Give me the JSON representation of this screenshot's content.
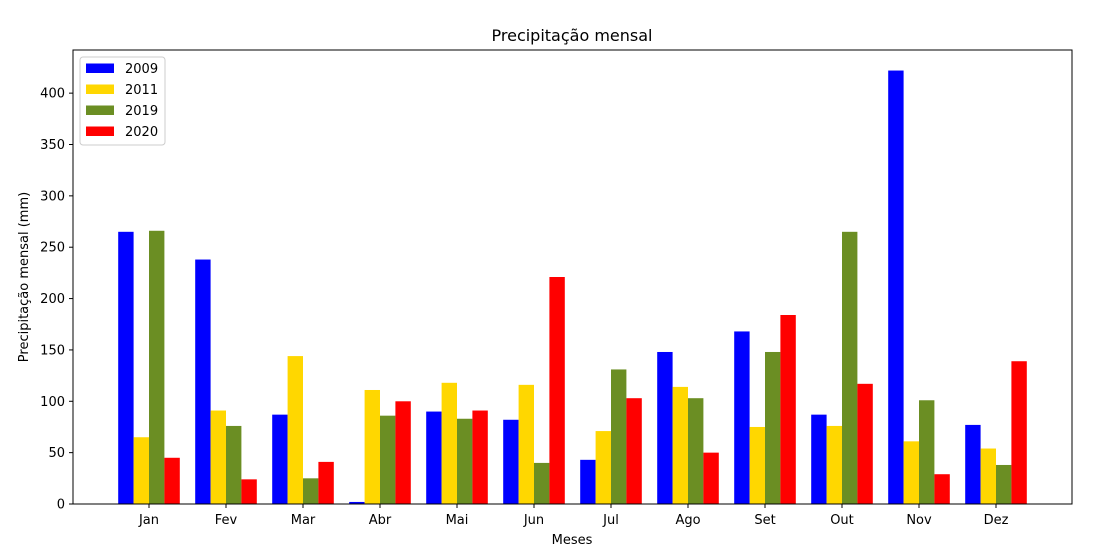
{
  "chart_data": {
    "type": "bar",
    "title": "Precipitação mensal",
    "xlabel": "Meses",
    "ylabel": "Precipitação mensal (mm)",
    "categories": [
      "Jan",
      "Fev",
      "Mar",
      "Abr",
      "Mai",
      "Jun",
      "Jul",
      "Ago",
      "Set",
      "Out",
      "Nov",
      "Dez"
    ],
    "ylim": [
      0,
      442
    ],
    "yticks": [
      0,
      50,
      100,
      150,
      200,
      250,
      300,
      350,
      400
    ],
    "grid": false,
    "legend_position": "top-left",
    "series": [
      {
        "name": "2009",
        "color": "#0000ff",
        "values": [
          265,
          238,
          87,
          2,
          90,
          82,
          43,
          148,
          168,
          87,
          422,
          77
        ]
      },
      {
        "name": "2011",
        "color": "#ffd700",
        "values": [
          65,
          91,
          144,
          111,
          118,
          116,
          71,
          114,
          75,
          76,
          61,
          54
        ]
      },
      {
        "name": "2019",
        "color": "#6b8e23",
        "values": [
          266,
          76,
          25,
          86,
          83,
          40,
          131,
          103,
          148,
          265,
          101,
          38
        ]
      },
      {
        "name": "2020",
        "color": "#ff0000",
        "values": [
          45,
          24,
          41,
          100,
          91,
          221,
          103,
          50,
          184,
          117,
          29,
          139
        ]
      }
    ]
  }
}
